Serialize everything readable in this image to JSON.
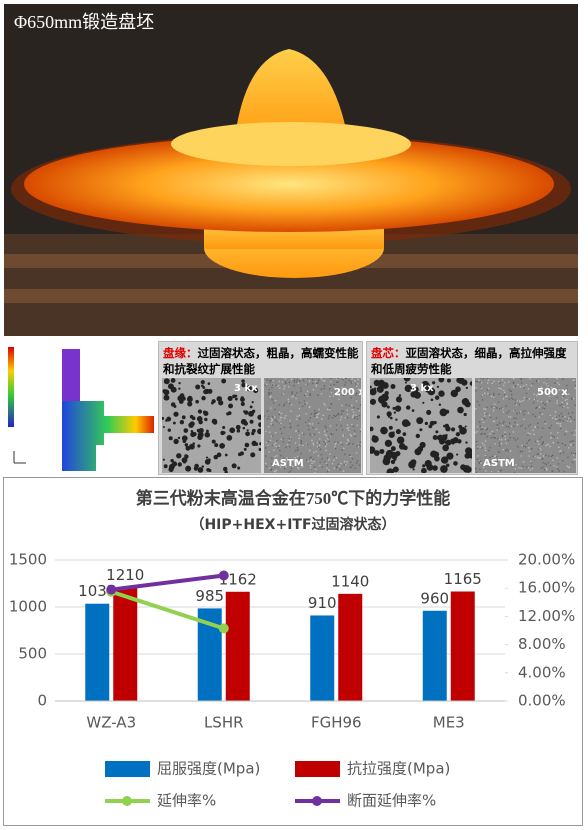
{
  "photo": {
    "caption": "Φ650mm锻造盘坯"
  },
  "rim_panel": {
    "label": "盘缘：",
    "text": "过固溶状态，粗晶，高蠕变性能和抗裂纹扩展性能",
    "micrographs": [
      "3 kx",
      "200 x"
    ],
    "astm": "ASTM"
  },
  "bore_panel": {
    "label": "盘芯：",
    "text": "亚固溶状态，细晶，高拉伸强度和低周疲劳性能",
    "micrographs": [
      "3 kx",
      "500 x"
    ],
    "astm": "ASTM"
  },
  "chart_data": {
    "type": "bar",
    "title": "第三代粉末高温合金在750℃下的力学性能",
    "subtitle": "（HIP+HEX+ITF过固溶状态）",
    "categories": [
      "WZ-A3",
      "LSHR",
      "FGH96",
      "ME3"
    ],
    "series": [
      {
        "name": "屈服强度(Mpa)",
        "color": "#0070c0",
        "type": "bar",
        "values": [
          1035,
          985,
          910,
          960
        ]
      },
      {
        "name": "抗拉强度(Mpa)",
        "color": "#c00000",
        "type": "bar",
        "values": [
          1210,
          1162,
          1140,
          1165
        ]
      },
      {
        "name": "延伸率%",
        "color": "#92d050",
        "type": "line",
        "axis": "y2",
        "values": [
          15.5,
          10.3,
          null,
          null
        ]
      },
      {
        "name": "断面延伸率%",
        "color": "#7030a0",
        "type": "line",
        "axis": "y2",
        "values": [
          15.8,
          17.8,
          null,
          null
        ]
      }
    ],
    "ylim": [
      0,
      1500
    ],
    "yticks": [
      0,
      500,
      1000,
      1500
    ],
    "y2lim": [
      0,
      20
    ],
    "y2ticks": [
      {
        "value": 0,
        "label": "0.00%"
      },
      {
        "value": 4,
        "label": "4.00%"
      },
      {
        "value": 8,
        "label": "8.00%"
      },
      {
        "value": 12,
        "label": "12.00%"
      },
      {
        "value": 16,
        "label": "16.00%"
      },
      {
        "value": 20,
        "label": "20.00%"
      }
    ],
    "legend": "bottom"
  }
}
